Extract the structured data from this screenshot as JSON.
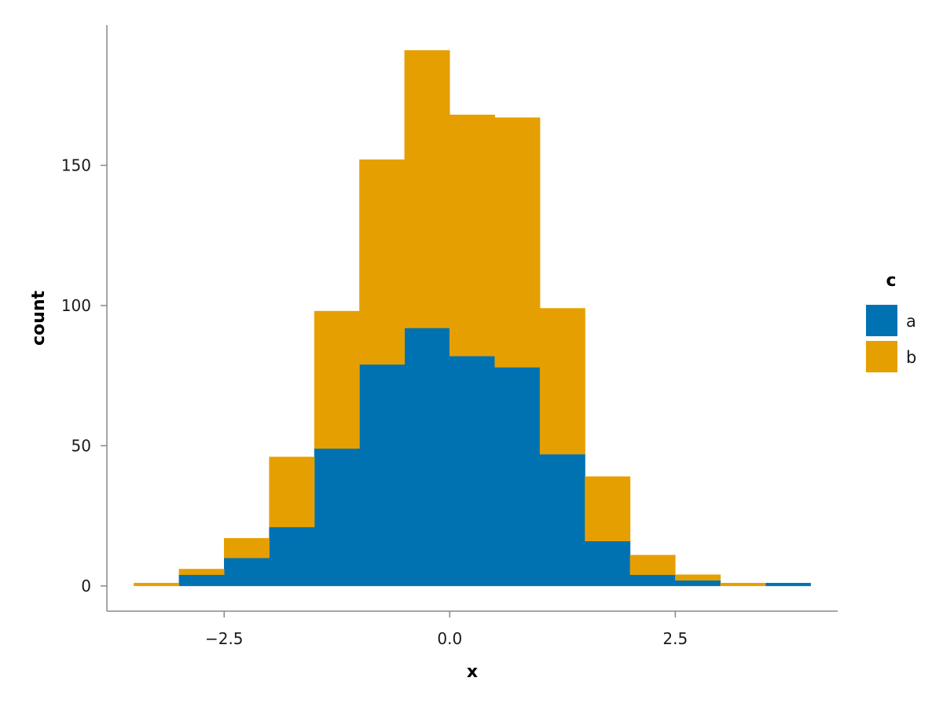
{
  "chart_data": {
    "type": "bar",
    "subtype": "stacked-histogram",
    "xlabel": "x",
    "ylabel": "count",
    "xlim": [
      -3.8,
      4.3
    ],
    "ylim": [
      -9,
      200
    ],
    "x_ticks": [
      -2.5,
      0.0,
      2.5
    ],
    "x_tick_labels": [
      "−2.5",
      "0.0",
      "2.5"
    ],
    "y_ticks": [
      0,
      50,
      100,
      150
    ],
    "y_tick_labels": [
      "0",
      "50",
      "100",
      "150"
    ],
    "grid": false,
    "legend": {
      "title": "c",
      "position": "right"
    },
    "bin_edges": [
      -3.5,
      -3.0,
      -2.5,
      -2.0,
      -1.5,
      -1.0,
      -0.5,
      0.0,
      0.5,
      1.0,
      1.5,
      2.0,
      2.5,
      3.0,
      3.5,
      4.0
    ],
    "series": [
      {
        "name": "a",
        "color": "#0072b2",
        "values": [
          0,
          4,
          10,
          21,
          49,
          79,
          92,
          82,
          78,
          47,
          16,
          4,
          2,
          0,
          1
        ]
      },
      {
        "name": "b",
        "color": "#e69f00",
        "values": [
          1,
          2,
          7,
          25,
          49,
          73,
          99,
          86,
          89,
          52,
          23,
          7,
          2,
          1,
          0
        ]
      }
    ]
  }
}
